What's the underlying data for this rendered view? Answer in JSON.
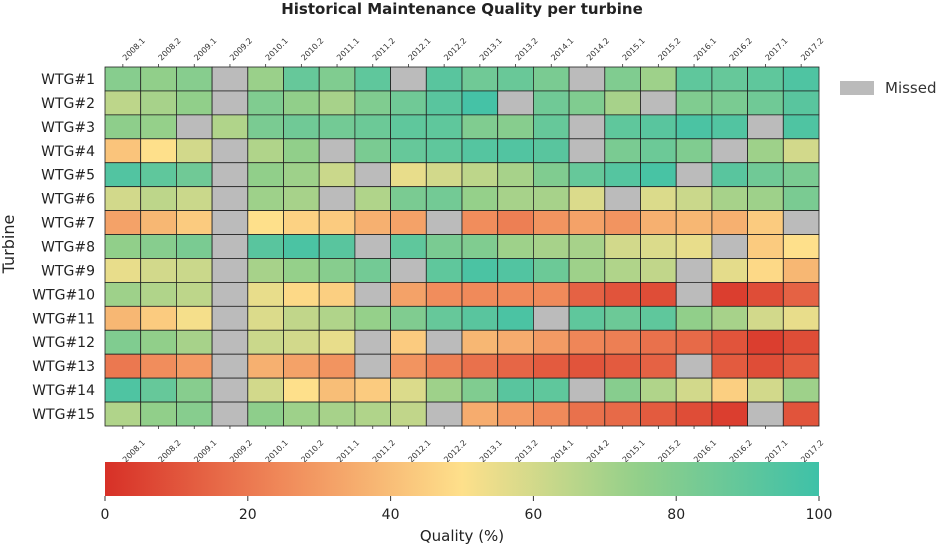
{
  "chart_data": {
    "type": "heatmap",
    "title": "Historical Maintenance Quality per turbine",
    "ylabel": "Turbine",
    "periods": [
      "2008.1",
      "2008.2",
      "2009.1",
      "2009.2",
      "2010.1",
      "2010.2",
      "2011.1",
      "2011.2",
      "2012.1",
      "2012.2",
      "2013.1",
      "2013.2",
      "2014.1",
      "2014.2",
      "2015.1",
      "2015.2",
      "2016.1",
      "2016.2",
      "2017.1",
      "2017.2"
    ],
    "turbines": [
      "WTG#1",
      "WTG#2",
      "WTG#3",
      "WTG#4",
      "WTG#5",
      "WTG#6",
      "WTG#7",
      "WTG#8",
      "WTG#9",
      "WTG#10",
      "WTG#11",
      "WTG#12",
      "WTG#13",
      "WTG#14",
      "WTG#15"
    ],
    "missing_label": "Missed",
    "values": [
      [
        78,
        75,
        78,
        null,
        73,
        88,
        80,
        90,
        null,
        92,
        85,
        87,
        82,
        null,
        80,
        72,
        90,
        88,
        90,
        95
      ],
      [
        65,
        70,
        75,
        null,
        80,
        75,
        70,
        80,
        85,
        92,
        98,
        null,
        85,
        80,
        70,
        null,
        80,
        82,
        85,
        92
      ],
      [
        76,
        74,
        null,
        68,
        82,
        85,
        84,
        86,
        90,
        90,
        80,
        78,
        88,
        null,
        90,
        92,
        96,
        94,
        null,
        95
      ],
      [
        42,
        50,
        60,
        null,
        68,
        75,
        null,
        82,
        88,
        90,
        93,
        94,
        92,
        null,
        82,
        86,
        80,
        null,
        72,
        60
      ],
      [
        94,
        90,
        85,
        null,
        75,
        72,
        62,
        null,
        55,
        60,
        65,
        70,
        80,
        88,
        93,
        97,
        null,
        92,
        85,
        82
      ],
      [
        60,
        65,
        62,
        null,
        72,
        70,
        null,
        68,
        82,
        84,
        74,
        70,
        70,
        58,
        null,
        58,
        62,
        70,
        72,
        82
      ],
      [
        32,
        38,
        44,
        null,
        50,
        46,
        44,
        36,
        32,
        null,
        26,
        22,
        28,
        32,
        28,
        36,
        38,
        36,
        44,
        null
      ],
      [
        75,
        78,
        82,
        null,
        92,
        96,
        92,
        null,
        90,
        82,
        80,
        72,
        70,
        70,
        60,
        58,
        55,
        null,
        44,
        50
      ],
      [
        55,
        60,
        62,
        null,
        70,
        74,
        78,
        84,
        null,
        90,
        96,
        94,
        86,
        72,
        68,
        64,
        null,
        56,
        48,
        38
      ],
      [
        72,
        68,
        65,
        null,
        55,
        48,
        45,
        null,
        32,
        26,
        25,
        25,
        25,
        14,
        10,
        8,
        null,
        4,
        8,
        14
      ],
      [
        38,
        44,
        52,
        null,
        58,
        64,
        68,
        74,
        80,
        88,
        92,
        96,
        null,
        90,
        86,
        90,
        75,
        70,
        60,
        55
      ],
      [
        80,
        75,
        70,
        null,
        62,
        60,
        55,
        null,
        44,
        null,
        38,
        35,
        30,
        24,
        22,
        18,
        16,
        10,
        4,
        8
      ],
      [
        20,
        26,
        30,
        null,
        36,
        32,
        28,
        null,
        28,
        22,
        18,
        15,
        12,
        10,
        12,
        14,
        null,
        12,
        8,
        12
      ],
      [
        95,
        88,
        78,
        null,
        60,
        50,
        40,
        44,
        58,
        72,
        80,
        92,
        90,
        null,
        78,
        68,
        60,
        45,
        60,
        72
      ],
      [
        68,
        75,
        78,
        null,
        76,
        72,
        70,
        68,
        64,
        null,
        35,
        30,
        25,
        18,
        16,
        12,
        8,
        4,
        null,
        10
      ]
    ],
    "colorbar": {
      "label": "Quality (%)",
      "range": [
        0,
        100
      ],
      "ticks": [
        0,
        20,
        40,
        60,
        80,
        100
      ],
      "stops": [
        "#d73027",
        "#f08a5a",
        "#fee08b",
        "#91cf8a",
        "#3ec1a8"
      ]
    },
    "missing_color": "#bbbbbb"
  }
}
